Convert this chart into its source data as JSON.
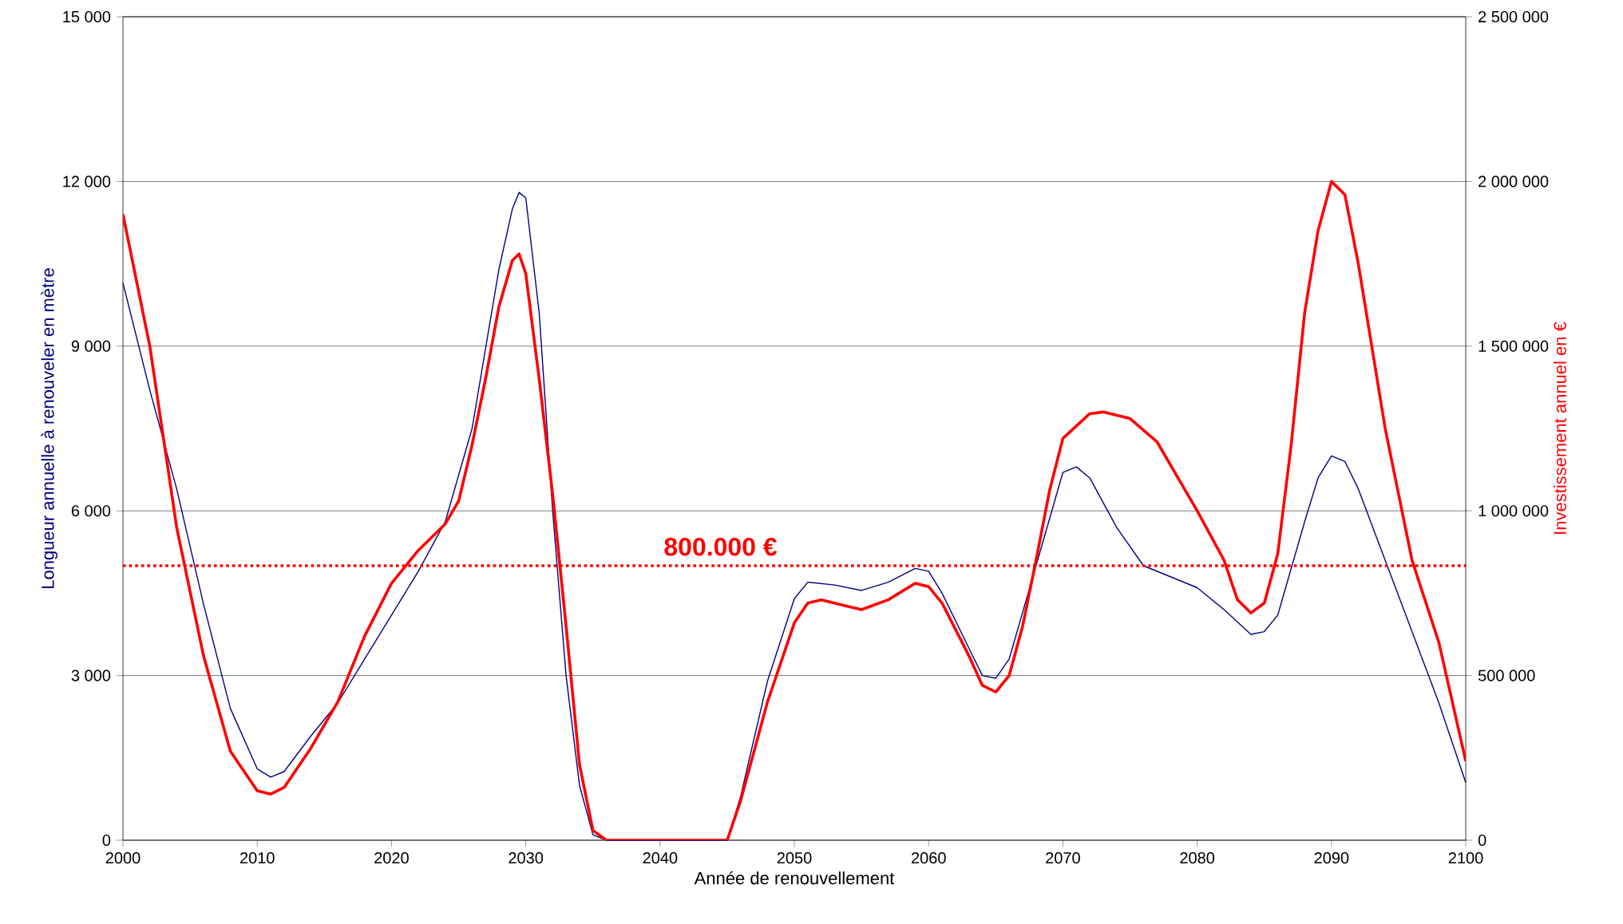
{
  "chart_data": {
    "type": "line",
    "xlabel": "Année de renouvellement",
    "ylabel": "Longueur annuelle à renouveler en mètre",
    "y2label": "Investissement annuel en €",
    "xlim": [
      2000,
      2100
    ],
    "xticks": [
      2000,
      2010,
      2020,
      2030,
      2040,
      2050,
      2060,
      2070,
      2080,
      2090,
      2100
    ],
    "ylim": [
      0,
      15000
    ],
    "yticks": [
      0,
      {
        "value": 3000,
        "label": "3 000"
      },
      {
        "value": 6000,
        "label": "6 000"
      },
      {
        "value": 9000,
        "label": "9 000"
      },
      {
        "value": 12000,
        "label": "12 000"
      },
      {
        "value": 15000,
        "label": "15 000"
      }
    ],
    "y2lim": [
      0,
      2500000
    ],
    "y2ticks": [
      0,
      {
        "value": 500000,
        "label": "500 000"
      },
      {
        "value": 1000000,
        "label": "1 000 000"
      },
      {
        "value": 1500000,
        "label": "1 500 000"
      },
      {
        "value": 2000000,
        "label": "2 000 000"
      },
      {
        "value": 2500000,
        "label": "2 500 000"
      }
    ],
    "grid": "y",
    "line_style": "solid",
    "series": [
      {
        "color": "#000080",
        "axis": "y",
        "x": [
          2000,
          2002,
          2004,
          2006,
          2008,
          2010,
          2011,
          2012,
          2014,
          2016,
          2018,
          2020,
          2022,
          2024,
          2026,
          2028,
          2029,
          2029.5,
          2030,
          2031,
          2032,
          2033,
          2034,
          2035,
          2036,
          2045,
          2046,
          2048,
          2050,
          2051,
          2053,
          2055,
          2057,
          2059,
          2060,
          2061,
          2063,
          2064,
          2065,
          2066,
          2068,
          2070,
          2071,
          2072,
          2074,
          2076,
          2078,
          2080,
          2082,
          2084,
          2085,
          2086,
          2088,
          2089,
          2090,
          2091,
          2092,
          2094,
          2096,
          2098,
          2100
        ],
        "values": [
          10150,
          8200,
          6400,
          4300,
          2400,
          1300,
          1150,
          1250,
          1900,
          2500,
          3300,
          4100,
          4900,
          5800,
          7500,
          10400,
          11500,
          11800,
          11700,
          9600,
          6000,
          3000,
          1000,
          100,
          0,
          0,
          800,
          2900,
          4400,
          4700,
          4650,
          4550,
          4700,
          4950,
          4900,
          4500,
          3500,
          3000,
          2950,
          3300,
          5000,
          6700,
          6800,
          6600,
          5700,
          5000,
          4800,
          4600,
          4200,
          3750,
          3800,
          4100,
          5800,
          6600,
          7000,
          6900,
          6400,
          5100,
          3800,
          2500,
          1050
        ]
      },
      {
        "color": "#ff0000",
        "axis": "y2",
        "x": [
          2000,
          2002,
          2004,
          2006,
          2008,
          2010,
          2011,
          2012,
          2014,
          2016,
          2018,
          2020,
          2022,
          2024,
          2025,
          2026,
          2027,
          2028,
          2029,
          2029.5,
          2030,
          2031,
          2032,
          2033,
          2034,
          2035,
          2036,
          2040,
          2045,
          2046,
          2048,
          2050,
          2051,
          2052,
          2054,
          2055,
          2057,
          2059,
          2060,
          2061,
          2063,
          2064,
          2065,
          2066,
          2067,
          2068,
          2069,
          2070,
          2072,
          2073,
          2075,
          2077,
          2080,
          2082,
          2083,
          2084,
          2085,
          2086,
          2087,
          2088,
          2089,
          2090,
          2091,
          2092,
          2093,
          2094,
          2095,
          2096,
          2098,
          2100
        ],
        "values": [
          1900000,
          1500000,
          950000,
          560000,
          270000,
          150000,
          140000,
          160000,
          280000,
          420000,
          620000,
          780000,
          880000,
          960000,
          1030000,
          1200000,
          1400000,
          1620000,
          1760000,
          1780000,
          1720000,
          1400000,
          1050000,
          650000,
          230000,
          30000,
          0,
          0,
          0,
          120000,
          420000,
          660000,
          720000,
          730000,
          710000,
          700000,
          730000,
          780000,
          770000,
          720000,
          560000,
          470000,
          450000,
          500000,
          650000,
          850000,
          1060000,
          1220000,
          1295000,
          1300000,
          1280000,
          1210000,
          1000000,
          850000,
          730000,
          690000,
          720000,
          870000,
          1200000,
          1600000,
          1850000,
          2000000,
          1960000,
          1750000,
          1500000,
          1250000,
          1050000,
          850000,
          600000,
          240000
        ]
      }
    ],
    "ref_lines": [
      {
        "axis": "y",
        "value": 5000,
        "label": "800.000 €",
        "color": "#ff0000",
        "line_style": "dotted"
      }
    ]
  }
}
